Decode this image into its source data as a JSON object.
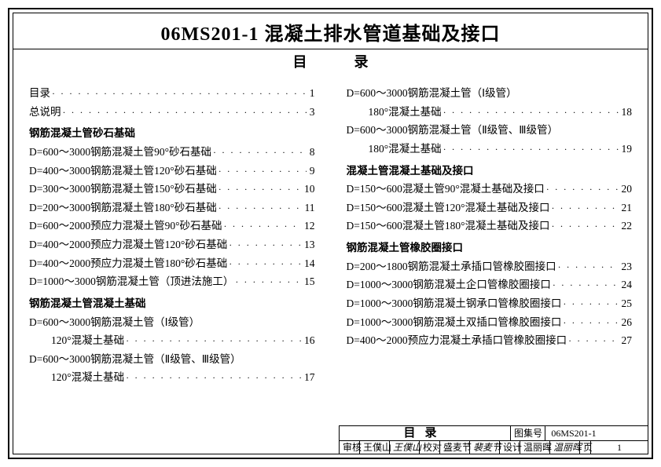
{
  "title": "06MS201-1 混凝土排水管道基础及接口",
  "toc_heading_left": "目",
  "toc_heading_right": "录",
  "left": [
    {
      "type": "entry",
      "label": "目录",
      "page": "1"
    },
    {
      "type": "entry",
      "label": "总说明",
      "page": "3"
    },
    {
      "type": "section",
      "label": "钢筋混凝土管砂石基础"
    },
    {
      "type": "entry",
      "label": "D=600～3000钢筋混凝土管90°砂石基础",
      "page": "8"
    },
    {
      "type": "entry",
      "label": "D=400～3000钢筋混凝土管120°砂石基础",
      "page": "9"
    },
    {
      "type": "entry",
      "label": "D=300～3000钢筋混凝土管150°砂石基础",
      "page": "10"
    },
    {
      "type": "entry",
      "label": "D=200～3000钢筋混凝土管180°砂石基础",
      "page": "11"
    },
    {
      "type": "entry",
      "label": "D=600～2000预应力混凝土管90°砂石基础",
      "page": "12"
    },
    {
      "type": "entry",
      "label": "D=400～2000预应力混凝土管120°砂石基础",
      "page": "13"
    },
    {
      "type": "entry",
      "label": "D=400～2000预应力混凝土管180°砂石基础",
      "page": "14"
    },
    {
      "type": "entry",
      "label": "D=1000～3000钢筋混凝土管（顶进法施工）",
      "page": "15"
    },
    {
      "type": "section",
      "label": "钢筋混凝土管混凝土基础"
    },
    {
      "type": "plain",
      "label": "D=600～3000钢筋混凝土管（Ⅰ级管）"
    },
    {
      "type": "entry",
      "indent": true,
      "label": "120°混凝土基础",
      "page": "16"
    },
    {
      "type": "plain",
      "label": "D=600～3000钢筋混凝土管（Ⅱ级管、Ⅲ级管）"
    },
    {
      "type": "entry",
      "indent": true,
      "label": "120°混凝土基础",
      "page": "17"
    }
  ],
  "right": [
    {
      "type": "plain",
      "label": "D=600～3000钢筋混凝土管（Ⅰ级管）"
    },
    {
      "type": "entry",
      "indent": true,
      "label": "180°混凝土基础",
      "page": "18"
    },
    {
      "type": "plain",
      "label": "D=600～3000钢筋混凝土管（Ⅱ级管、Ⅲ级管）"
    },
    {
      "type": "entry",
      "indent": true,
      "label": "180°混凝土基础",
      "page": "19"
    },
    {
      "type": "section",
      "label": "混凝土管混凝土基础及接口"
    },
    {
      "type": "entry",
      "label": "D=150～600混凝土管90°混凝土基础及接口",
      "page": "20"
    },
    {
      "type": "entry",
      "label": "D=150～600混凝土管120°混凝土基础及接口",
      "page": "21"
    },
    {
      "type": "entry",
      "label": "D=150～600混凝土管180°混凝土基础及接口",
      "page": "22"
    },
    {
      "type": "section",
      "label": "钢筋混凝土管橡胶圈接口"
    },
    {
      "type": "entry",
      "label": "D=200～1800钢筋混凝土承插口管橡胶圈接口",
      "page": "23"
    },
    {
      "type": "entry",
      "label": "D=1000～3000钢筋混凝土企口管橡胶圈接口",
      "page": "24"
    },
    {
      "type": "entry",
      "label": "D=1000～3000钢筋混凝土钢承口管橡胶圈接口",
      "page": "25"
    },
    {
      "type": "entry",
      "label": "D=1000～3000钢筋混凝土双插口管橡胶圈接口",
      "page": "26"
    },
    {
      "type": "entry",
      "label": "D=400～2000预应力混凝土承插口管橡胶圈接口",
      "page": "27"
    }
  ],
  "footer": {
    "big": "目录",
    "atlas_label": "图集号",
    "atlas_code": "06MS201-1",
    "審核_l": "审核",
    "審核_v": "王僕山",
    "審核_s": "王僕山",
    "校对_l": "校对",
    "校对_v": "盛麦节",
    "校对_s": "裴麦节",
    "设计_l": "设计",
    "设计_v": "温丽晖",
    "设计_s": "温丽晖",
    "page_l": "页",
    "page_v": "1"
  }
}
